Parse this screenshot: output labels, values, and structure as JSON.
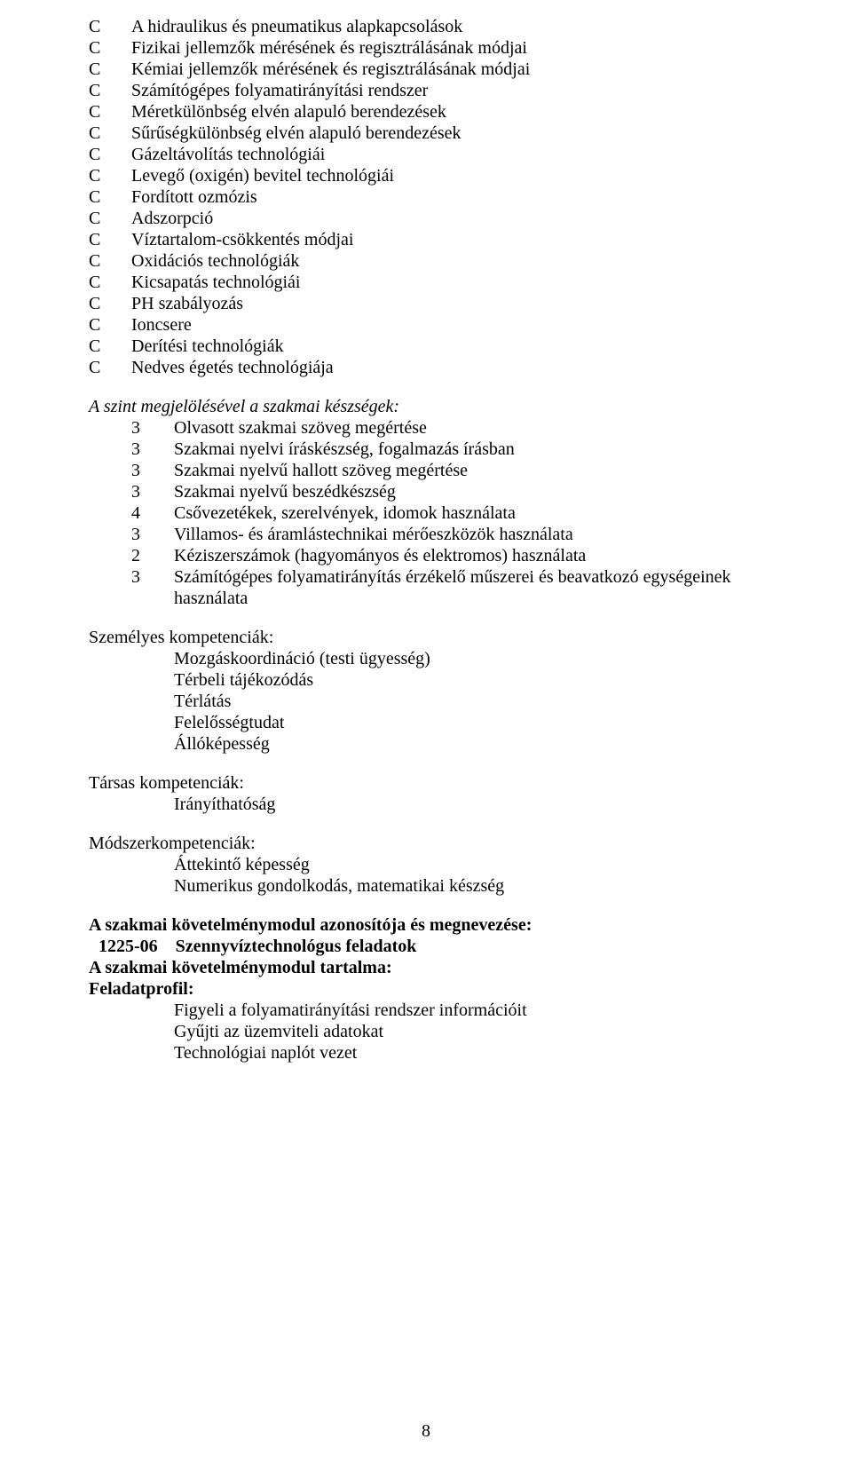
{
  "cList": {
    "marker": "C",
    "items": [
      "A hidraulikus és pneumatikus alapkapcsolások",
      "Fizikai jellemzők mérésének és regisztrálásának módjai",
      "Kémiai jellemzők mérésének és regisztrálásának módjai",
      "Számítógépes folyamatirányítási rendszer",
      "Méretkülönbség elvén alapuló berendezések",
      "Sűrűségkülönbség elvén alapuló berendezések",
      "Gázeltávolítás technológiái",
      "Levegő (oxigén) bevitel technológiái",
      "Fordított ozmózis",
      "Adszorpció",
      "Víztartalom-csökkentés módjai",
      "Oxidációs technológiák",
      "Kicsapatás technológiái",
      "PH szabályozás",
      "Ioncsere",
      "Derítési technológiák",
      "Nedves égetés technológiája"
    ]
  },
  "skillsTitle": "A szint megjelölésével a szakmai készségek:",
  "skills": [
    {
      "n": "3",
      "t": "Olvasott szakmai szöveg megértése"
    },
    {
      "n": "3",
      "t": "Szakmai nyelvi íráskészség, fogalmazás írásban"
    },
    {
      "n": "3",
      "t": "Szakmai nyelvű hallott szöveg megértése"
    },
    {
      "n": "3",
      "t": "Szakmai nyelvű beszédkészség"
    },
    {
      "n": "4",
      "t": "Csővezetékek, szerelvények, idomok használata"
    },
    {
      "n": "3",
      "t": "Villamos- és áramlástechnikai mérőeszközök használata"
    },
    {
      "n": "2",
      "t": "Kéziszerszámok (hagyományos és elektromos) használata"
    },
    {
      "n": "3",
      "t": "Számítógépes folyamatirányítás érzékelő műszerei és beavatkozó egységeinek használata"
    }
  ],
  "personal": {
    "heading": "Személyes kompetenciák:",
    "items": [
      "Mozgáskoordináció (testi ügyesség)",
      "Térbeli tájékozódás",
      "Térlátás",
      "Felelősségtudat",
      "Állóképesség"
    ]
  },
  "social": {
    "heading": "Társas kompetenciák:",
    "items": [
      "Irányíthatóság"
    ]
  },
  "method": {
    "heading": "Módszerkompetenciák:",
    "items": [
      "Áttekintő képesség",
      "Numerikus gondolkodás, matematikai készség"
    ]
  },
  "module": {
    "idLine": "A szakmai követelménymodul azonosítója és megnevezése:",
    "codeLabel": "1225-06",
    "codeName": "Szennyvíztechnológus feladatok",
    "contentLine": "A szakmai követelménymodul tartalma:",
    "profileLine": "Feladatprofil:",
    "profileItems": [
      "Figyeli a folyamatirányítási rendszer információit",
      "Gyűjti az üzemviteli adatokat",
      "Technológiai naplót vezet"
    ]
  },
  "pageNumber": "8"
}
